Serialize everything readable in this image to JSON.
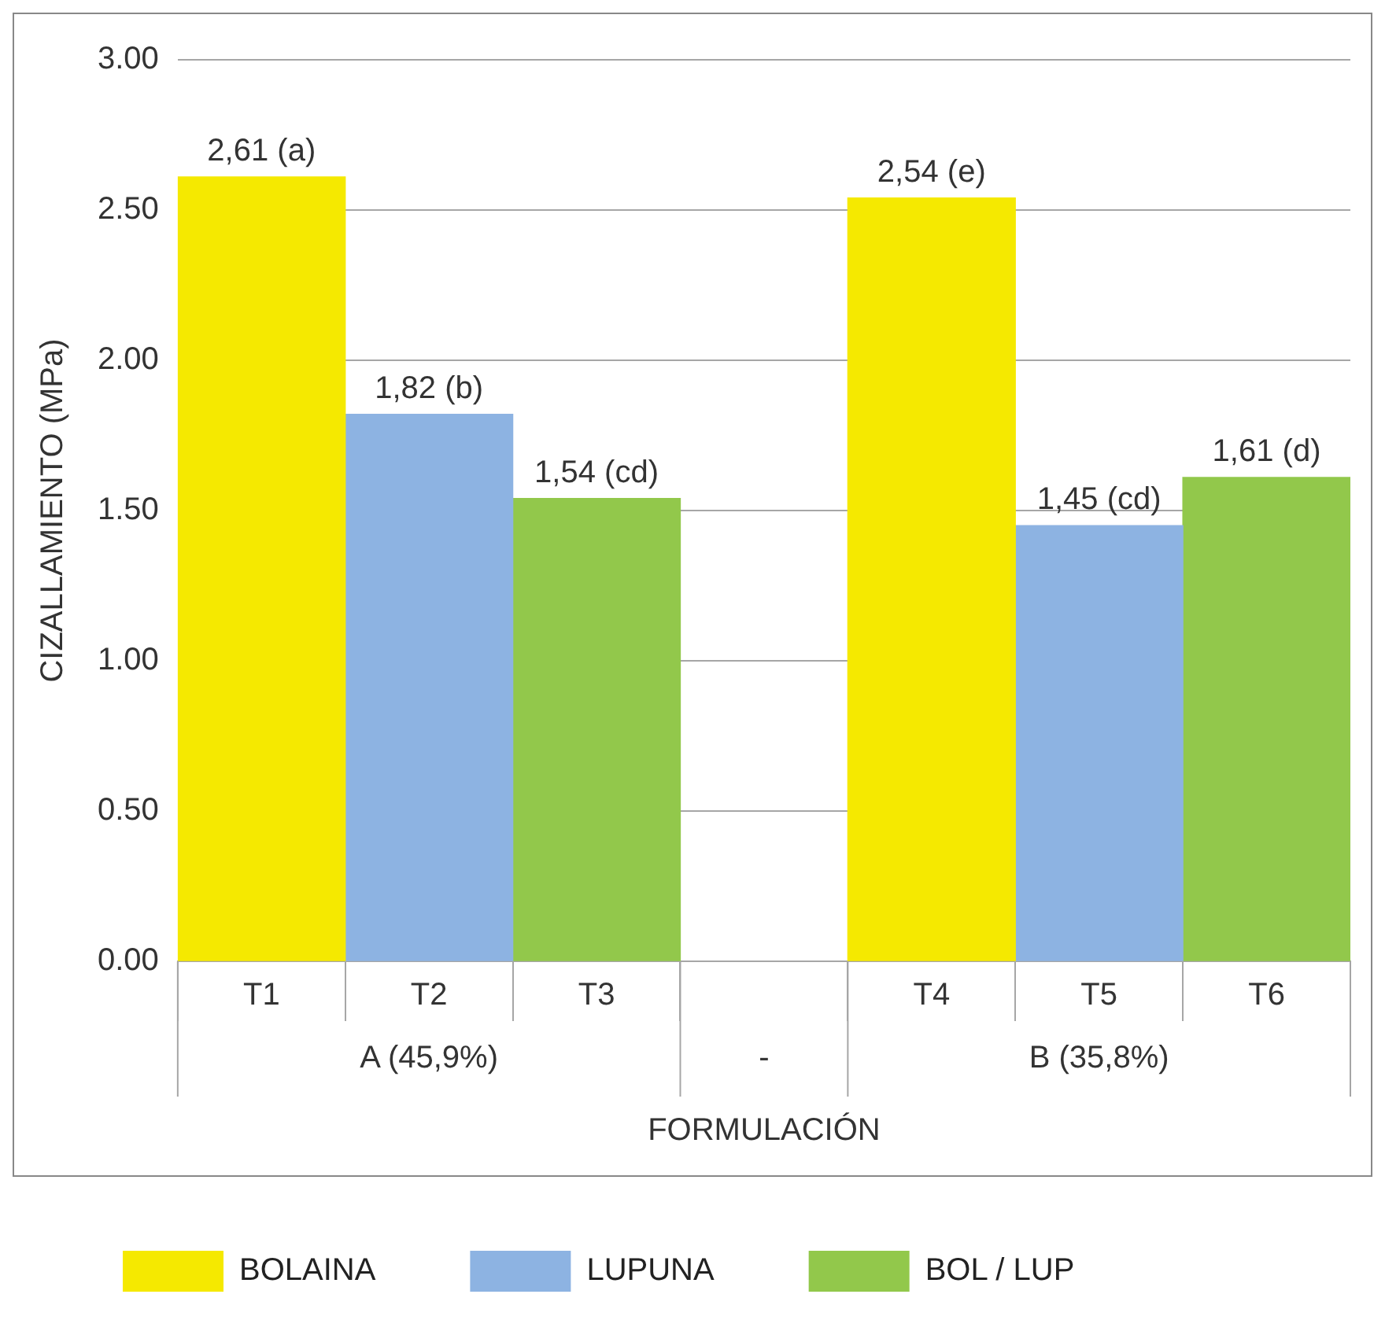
{
  "chart_data": {
    "type": "bar",
    "xlabel": "FORMULACIÓN",
    "ylabel": "CIZALLAMIENTO (MPa)",
    "categories": [
      "T1",
      "T2",
      "T3",
      null,
      "T4",
      "T5",
      "T6"
    ],
    "series": [
      {
        "name": "BOLAINA",
        "color": "#f5e900",
        "values": [
          2.61,
          null,
          null,
          null,
          2.54,
          null,
          null
        ],
        "value_labels": [
          "2,61 (a)",
          null,
          null,
          null,
          "2,54 (e)",
          null,
          null
        ]
      },
      {
        "name": "LUPUNA",
        "color": "#8db3e2",
        "values": [
          null,
          1.82,
          null,
          null,
          null,
          1.45,
          null
        ],
        "value_labels": [
          null,
          "1,82 (b)",
          null,
          null,
          null,
          "1,45 (cd)",
          null
        ]
      },
      {
        "name": "BOL / LUP",
        "color": "#92c84b",
        "values": [
          null,
          null,
          1.54,
          null,
          null,
          null,
          1.61
        ],
        "value_labels": [
          null,
          null,
          "1,54 (cd)",
          null,
          null,
          null,
          "1,61 (d)"
        ]
      }
    ],
    "ylim": [
      0,
      3
    ],
    "yticks": [
      {
        "value": 0,
        "label": "0.00"
      },
      {
        "value": 0.5,
        "label": "0.50"
      },
      {
        "value": 1,
        "label": "1.00"
      },
      {
        "value": 1.5,
        "label": "1.50"
      },
      {
        "value": 2,
        "label": "2.00"
      },
      {
        "value": 2.5,
        "label": "2.50"
      },
      {
        "value": 3,
        "label": "3.00"
      }
    ],
    "grid": "y",
    "legend": "bottom",
    "annotations": [
      "A (45,9%)",
      "-",
      "B (35,8%)"
    ]
  }
}
